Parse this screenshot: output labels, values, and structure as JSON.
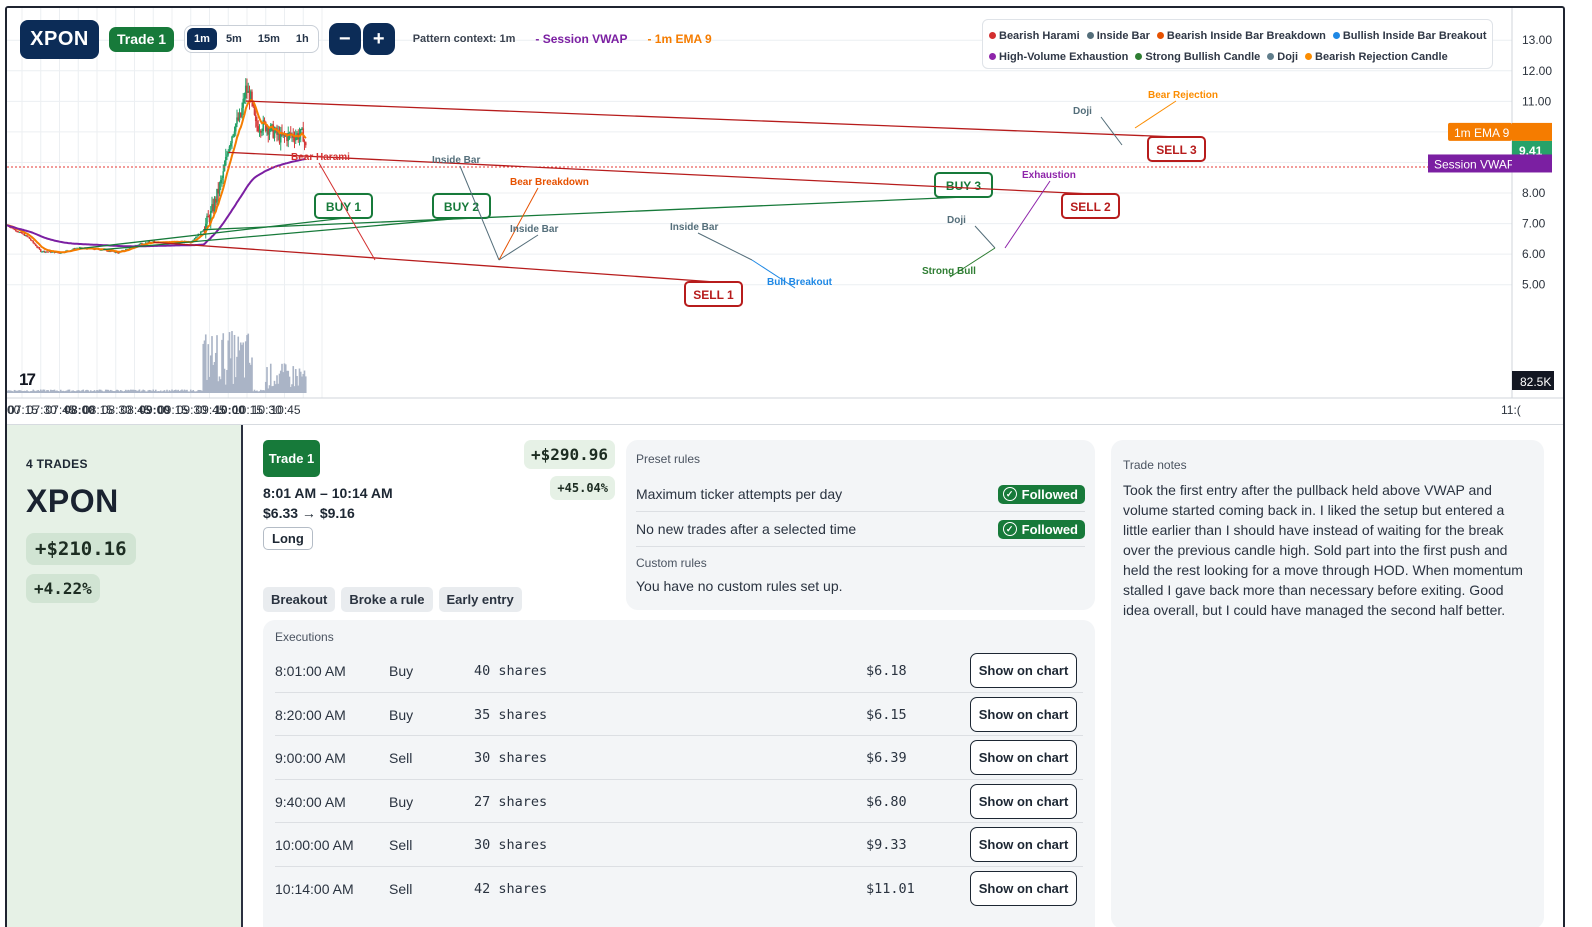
{
  "toolbar": {
    "ticker": "XPON",
    "trade_label": "Trade 1",
    "timeframes": [
      "1m",
      "5m",
      "15m",
      "1h"
    ],
    "active_timeframe": "1m",
    "zoom_out": "−",
    "zoom_in": "+",
    "pattern_context": "Pattern context: 1m",
    "vwap_legend": "- Session VWAP",
    "ema_legend": "- 1m EMA 9"
  },
  "legend": {
    "items": [
      {
        "label": "Bearish Harami",
        "color": "#d32f2f"
      },
      {
        "label": "Inside Bar",
        "color": "#546e7a"
      },
      {
        "label": "Bearish Inside Bar Breakdown",
        "color": "#e65100"
      },
      {
        "label": "Bullish Inside Bar Breakout",
        "color": "#1e88e5"
      },
      {
        "label": "High-Volume Exhaustion",
        "color": "#8e24aa"
      },
      {
        "label": "Strong Bullish Candle",
        "color": "#2e7d32"
      },
      {
        "label": "Doji",
        "color": "#607d8b"
      },
      {
        "label": "Bearish Rejection Candle",
        "color": "#fb8c00"
      }
    ]
  },
  "colors": {
    "up": "#26a269",
    "down": "#d63a3a",
    "vwap": "#7b1fa2",
    "ema": "#f57c00",
    "buy": "#177a3a",
    "sell": "#b71c1c",
    "navy": "#0c2c57"
  },
  "chart_data": {
    "type": "candlestick",
    "price_axis": [
      "13.00",
      "12.00",
      "11.00",
      "10.00",
      "9.00",
      "8.00",
      "7.00",
      "6.00",
      "5.00"
    ],
    "ylim": [
      4.5,
      13.4
    ],
    "time_axis": [
      "00",
      "07:15",
      "07:30",
      "07:45",
      "08:00",
      "08:15",
      "08:30",
      "08:45",
      "09:00",
      "09:15",
      "09:30",
      "09:45",
      "10:00",
      "10:15",
      "10:30",
      "10:45",
      "11:("
    ],
    "bold_times": [
      "08:00",
      "09:00",
      "10:00"
    ],
    "last_price": "9.41",
    "ema_label": "1m EMA 9",
    "vwap_label": "Session VWAP",
    "volume_label": "82.5K",
    "trades": [
      {
        "label": "BUY 1",
        "side": "buy",
        "time": "08:01",
        "price": 6.18
      },
      {
        "label": "BUY 2",
        "side": "buy",
        "time": "08:20",
        "price": 6.15
      },
      {
        "label": "SELL 1",
        "side": "sell",
        "time": "09:00",
        "price": 6.39
      },
      {
        "label": "BUY 3",
        "side": "buy",
        "time": "09:40",
        "price": 6.8
      },
      {
        "label": "SELL 2",
        "side": "sell",
        "time": "10:00",
        "price": 9.33
      },
      {
        "label": "SELL 3",
        "side": "sell",
        "time": "10:14",
        "price": 11.01
      }
    ],
    "annotations": [
      {
        "label": "Bear Harami",
        "color": "#d32f2f"
      },
      {
        "label": "Inside Bar",
        "color": "#546e7a"
      },
      {
        "label": "Bear Breakdown",
        "color": "#e65100"
      },
      {
        "label": "Inside Bar",
        "color": "#546e7a"
      },
      {
        "label": "Inside Bar",
        "color": "#546e7a"
      },
      {
        "label": "Bull Breakout",
        "color": "#1e88e5"
      },
      {
        "label": "Doji",
        "color": "#546e7a"
      },
      {
        "label": "Strong Bull",
        "color": "#2e7d32"
      },
      {
        "label": "Exhaustion",
        "color": "#8e24aa"
      },
      {
        "label": "Doji",
        "color": "#546e7a"
      },
      {
        "label": "Bear Rejection",
        "color": "#fb8c00"
      }
    ]
  },
  "summary": {
    "trades_count": "4 TRADES",
    "ticker": "XPON",
    "pnl": "+$210.16",
    "pct": "+4.22%"
  },
  "trade": {
    "badge": "Trade 1",
    "time_range": "8:01 AM – 10:14 AM",
    "price_range": "$6.33 → $9.16",
    "side": "Long",
    "pnl": "+$290.96",
    "pct": "+45.04%",
    "tags": [
      "Breakout",
      "Broke a rule",
      "Early entry"
    ]
  },
  "rules": {
    "preset_title": "Preset rules",
    "preset": [
      {
        "label": "Maximum ticker attempts per day",
        "status": "Followed"
      },
      {
        "label": "No new trades after a selected time",
        "status": "Followed"
      }
    ],
    "custom_title": "Custom rules",
    "custom_text": "You have no custom rules set up."
  },
  "notes": {
    "title": "Trade notes",
    "text": "Took the first entry after the pullback held above VWAP and volume started coming back in. I liked the setup but entered a little earlier than I should have instead of waiting for the break over the previous candle high. Sold part into the first push and held the rest looking for a move through HOD. When momentum stalled I gave back more than necessary before exiting. Good idea overall, but I could have managed the second half better."
  },
  "executions": {
    "title": "Executions",
    "button_label": "Show on chart",
    "rows": [
      {
        "time": "8:01:00 AM",
        "side": "Buy",
        "shares": "40 shares",
        "price": "$6.18"
      },
      {
        "time": "8:20:00 AM",
        "side": "Buy",
        "shares": "35 shares",
        "price": "$6.15"
      },
      {
        "time": "9:00:00 AM",
        "side": "Sell",
        "shares": "30 shares",
        "price": "$6.39"
      },
      {
        "time": "9:40:00 AM",
        "side": "Buy",
        "shares": "27 shares",
        "price": "$6.80"
      },
      {
        "time": "10:00:00 AM",
        "side": "Sell",
        "shares": "30 shares",
        "price": "$9.33"
      },
      {
        "time": "10:14:00 AM",
        "side": "Sell",
        "shares": "42 shares",
        "price": "$11.01"
      }
    ]
  }
}
